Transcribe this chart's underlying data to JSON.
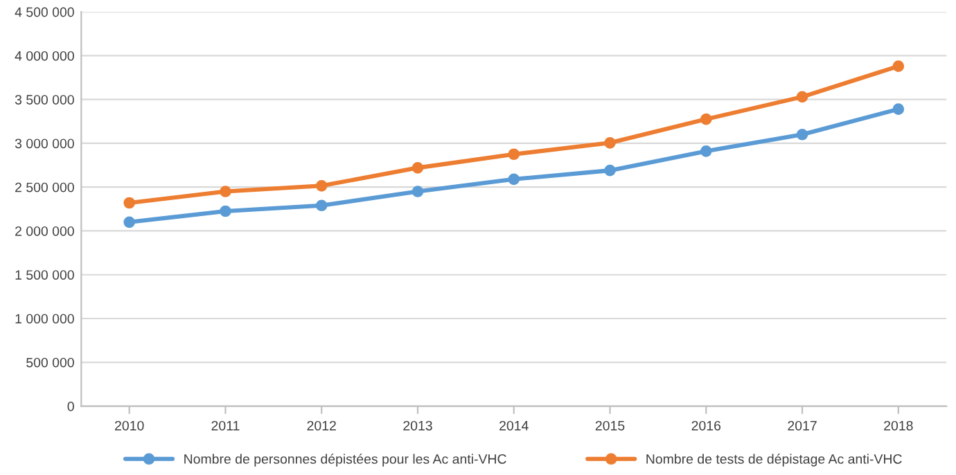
{
  "chart_data": {
    "type": "line",
    "categories": [
      "2010",
      "2011",
      "2012",
      "2013",
      "2014",
      "2015",
      "2016",
      "2017",
      "2018"
    ],
    "series": [
      {
        "name": "Nombre de personnes dépistées pour les Ac anti-VHC",
        "color": "#5b9bd5",
        "values": [
          2100000,
          2225000,
          2290000,
          2450000,
          2590000,
          2690000,
          2910000,
          3100000,
          3390000
        ]
      },
      {
        "name": "Nombre de tests de dépistage Ac anti-VHC",
        "color": "#ed7d31",
        "values": [
          2320000,
          2450000,
          2515000,
          2720000,
          2875000,
          3005000,
          3275000,
          3530000,
          3880000
        ]
      }
    ],
    "ylim": [
      0,
      4500000
    ],
    "yticks": [
      {
        "value": 0,
        "label": "0"
      },
      {
        "value": 500000,
        "label": "500 000"
      },
      {
        "value": 1000000,
        "label": "1 000 000"
      },
      {
        "value": 1500000,
        "label": "1 500 000"
      },
      {
        "value": 2000000,
        "label": "2 000 000"
      },
      {
        "value": 2500000,
        "label": "2 500 000"
      },
      {
        "value": 3000000,
        "label": "3 000 000"
      },
      {
        "value": 3500000,
        "label": "3 500 000"
      },
      {
        "value": 4000000,
        "label": "4 000 000"
      },
      {
        "value": 4500000,
        "label": "4 500 000"
      }
    ],
    "grid": "y",
    "legend": "bottom",
    "marker": "circle",
    "line_style": "solid"
  }
}
